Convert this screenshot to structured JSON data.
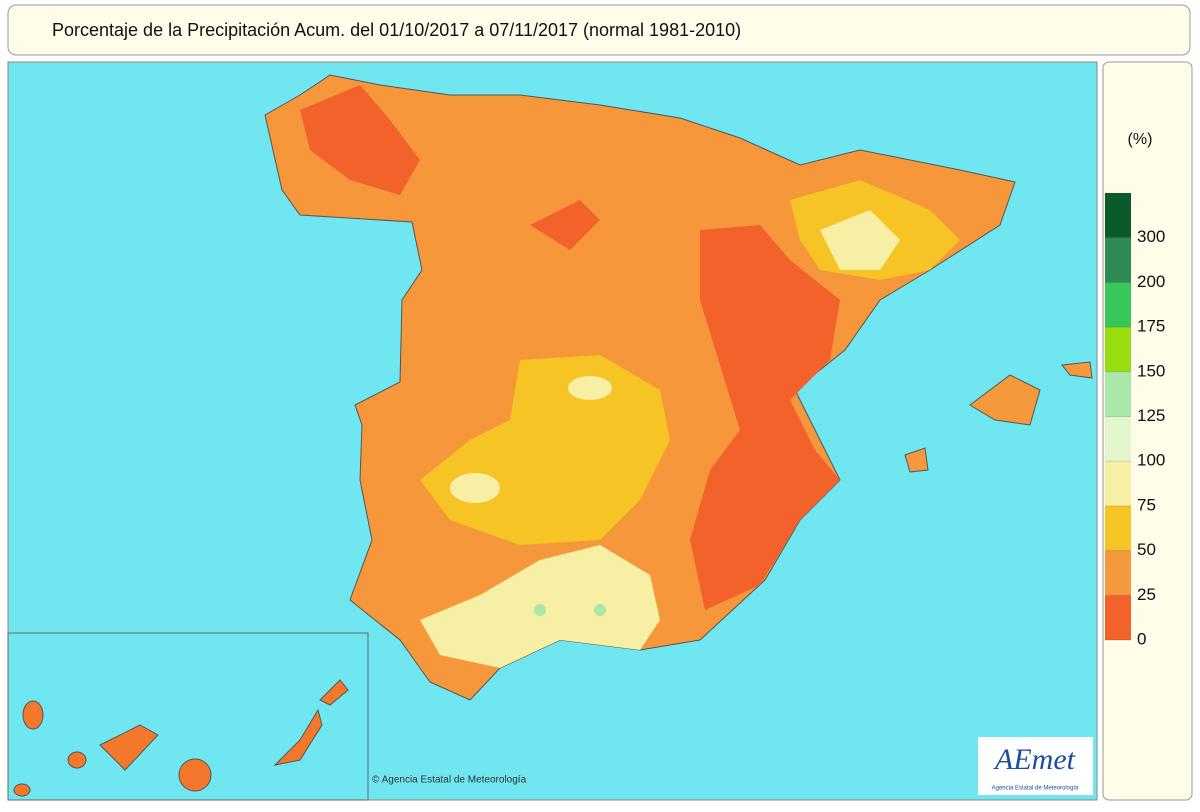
{
  "header": {
    "title": "Porcentaje de la Precipitación Acum. del 01/10/2017 a  07/11/2017  (normal 1981-2010)"
  },
  "legend": {
    "unit": "(%)",
    "ticks": [
      0,
      25,
      50,
      75,
      100,
      125,
      150,
      175,
      200,
      300
    ],
    "colors": [
      "#f4622c",
      "#f59a3c",
      "#f6c425",
      "#f7f0a4",
      "#e4f6cc",
      "#a8e8a8",
      "#98dd10",
      "#38c85a",
      "#2e8b57",
      "#0b5a2c"
    ]
  },
  "credit": "© Agencia Estatal de Meteorología",
  "logo": {
    "name": "AEmet",
    "subtitle": "Agencia Estatal de Meteorología"
  }
}
